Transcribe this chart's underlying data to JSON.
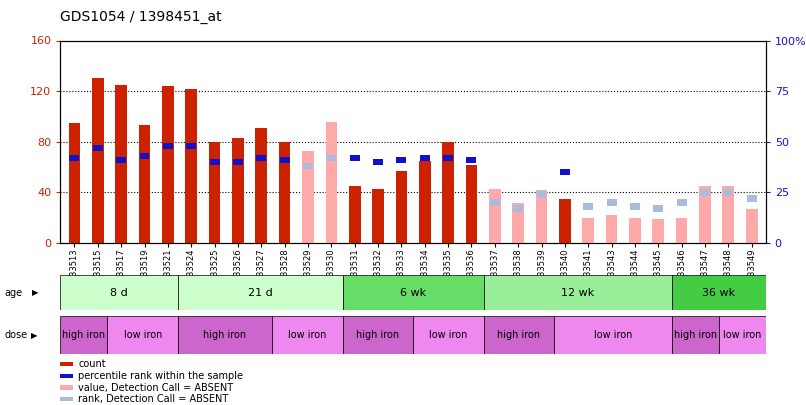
{
  "title": "GDS1054 / 1398451_at",
  "samples": [
    "GSM33513",
    "GSM33515",
    "GSM33517",
    "GSM33519",
    "GSM33521",
    "GSM33524",
    "GSM33525",
    "GSM33526",
    "GSM33527",
    "GSM33528",
    "GSM33529",
    "GSM33530",
    "GSM33531",
    "GSM33532",
    "GSM33533",
    "GSM33534",
    "GSM33535",
    "GSM33536",
    "GSM33537",
    "GSM33538",
    "GSM33539",
    "GSM33540",
    "GSM33541",
    "GSM33543",
    "GSM33544",
    "GSM33545",
    "GSM33546",
    "GSM33547",
    "GSM33548",
    "GSM33549"
  ],
  "count_red": [
    95,
    130,
    125,
    93,
    124,
    122,
    80,
    83,
    91,
    80,
    null,
    null,
    45,
    43,
    57,
    65,
    80,
    62,
    null,
    null,
    null,
    35,
    null,
    null,
    null,
    null,
    null,
    null,
    null,
    null
  ],
  "count_pink": [
    null,
    null,
    null,
    null,
    null,
    null,
    null,
    null,
    null,
    null,
    73,
    96,
    null,
    null,
    null,
    null,
    null,
    null,
    43,
    32,
    42,
    null,
    20,
    22,
    20,
    19,
    20,
    45,
    45,
    27
  ],
  "rank_blue": [
    42,
    47,
    41,
    43,
    48,
    48,
    40,
    40,
    42,
    41,
    null,
    null,
    42,
    40,
    41,
    42,
    42,
    41,
    null,
    null,
    null,
    35,
    null,
    null,
    null,
    null,
    null,
    null,
    null,
    null
  ],
  "rank_light_blue": [
    null,
    null,
    null,
    null,
    null,
    null,
    null,
    null,
    null,
    null,
    38,
    42,
    null,
    null,
    null,
    null,
    null,
    null,
    20,
    17,
    24,
    null,
    18,
    20,
    18,
    17,
    20,
    25,
    25,
    22
  ],
  "age_groups": [
    {
      "label": "8 d",
      "start": 0,
      "end": 5,
      "color": "#ccffcc"
    },
    {
      "label": "21 d",
      "start": 5,
      "end": 12,
      "color": "#ccffcc"
    },
    {
      "label": "6 wk",
      "start": 12,
      "end": 18,
      "color": "#66dd66"
    },
    {
      "label": "12 wk",
      "start": 18,
      "end": 26,
      "color": "#99ee99"
    },
    {
      "label": "36 wk",
      "start": 26,
      "end": 30,
      "color": "#44cc44"
    }
  ],
  "age_colors": [
    "#ccffcc",
    "#ccffcc",
    "#66dd66",
    "#99ee99",
    "#44cc44"
  ],
  "dose_groups": [
    {
      "label": "high iron",
      "start": 0,
      "end": 2,
      "color": "#cc66cc"
    },
    {
      "label": "low iron",
      "start": 2,
      "end": 5,
      "color": "#ee88ee"
    },
    {
      "label": "high iron",
      "start": 5,
      "end": 9,
      "color": "#cc66cc"
    },
    {
      "label": "low iron",
      "start": 9,
      "end": 12,
      "color": "#ee88ee"
    },
    {
      "label": "high iron",
      "start": 12,
      "end": 15,
      "color": "#cc66cc"
    },
    {
      "label": "low iron",
      "start": 15,
      "end": 18,
      "color": "#ee88ee"
    },
    {
      "label": "high iron",
      "start": 18,
      "end": 21,
      "color": "#cc66cc"
    },
    {
      "label": "low iron",
      "start": 21,
      "end": 26,
      "color": "#ee88ee"
    },
    {
      "label": "high iron",
      "start": 26,
      "end": 28,
      "color": "#cc66cc"
    },
    {
      "label": "low iron",
      "start": 28,
      "end": 30,
      "color": "#ee88ee"
    }
  ],
  "ylim_left": [
    0,
    160
  ],
  "ylim_right": [
    0,
    100
  ],
  "yticks_left": [
    0,
    40,
    80,
    120,
    160
  ],
  "yticks_right": [
    0,
    25,
    50,
    75,
    100
  ],
  "ytick_labels_right": [
    "0",
    "25",
    "50",
    "75",
    "100%"
  ],
  "color_red": "#cc2200",
  "color_pink": "#ffaaaa",
  "color_blue": "#1111cc",
  "color_light_blue": "#aabbdd",
  "background_color": "#ffffff",
  "bar_width": 0.5,
  "legend_items": [
    {
      "color": "#cc2200",
      "label": "count"
    },
    {
      "color": "#1111cc",
      "label": "percentile rank within the sample"
    },
    {
      "color": "#ffaaaa",
      "label": "value, Detection Call = ABSENT"
    },
    {
      "color": "#aabbdd",
      "label": "rank, Detection Call = ABSENT"
    }
  ]
}
